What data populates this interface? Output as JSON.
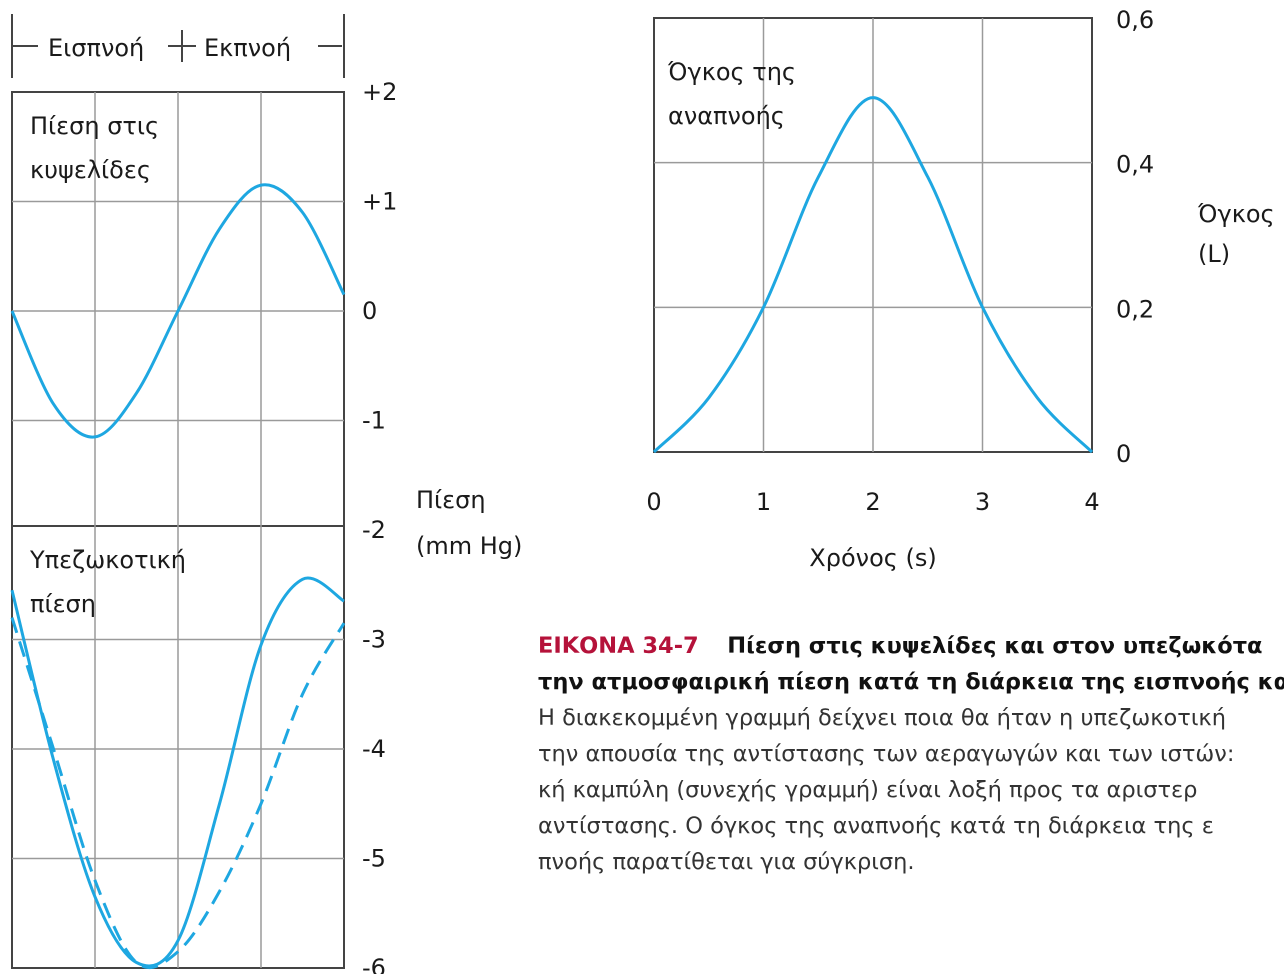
{
  "colors": {
    "curve": "#1ea7e1",
    "grid": "#9a9a9a",
    "frame": "#444444",
    "caption_label": "#b5123a"
  },
  "phase_labels": [
    "Εισπνοή",
    "Εκπνοή"
  ],
  "chart_data": [
    {
      "type": "line",
      "panel": "alveolar-pressure",
      "title": "Πίεση στις κυψελίδες",
      "title_lines": [
        "Πίεση στις",
        "κυψελίδες"
      ],
      "ylabel_lines": [
        "Πίεση",
        "(mm Hg)"
      ],
      "xlim": [
        0,
        4
      ],
      "ylim": [
        -2,
        2
      ],
      "series": [
        {
          "style": "solid",
          "x": [
            0,
            0.5,
            1,
            1.5,
            2,
            2.5,
            3,
            3.5,
            4
          ],
          "y": [
            0,
            -0.85,
            -1.15,
            -0.75,
            0,
            0.75,
            1.15,
            0.9,
            0.15
          ]
        }
      ]
    },
    {
      "type": "line",
      "panel": "pleural-pressure",
      "title": "Υπεζωκοτική πίεση",
      "title_lines": [
        "Υπεζωκοτική",
        "πίεση"
      ],
      "xlim": [
        0,
        4
      ],
      "ylim": [
        -6,
        -2
      ],
      "series": [
        {
          "style": "solid",
          "x": [
            0,
            0.5,
            1,
            1.5,
            2,
            2.5,
            3,
            3.5,
            4
          ],
          "y": [
            -2.55,
            -4.1,
            -5.35,
            -5.95,
            -5.75,
            -4.5,
            -3.05,
            -2.45,
            -2.65
          ]
        },
        {
          "style": "dashed",
          "x": [
            0,
            0.5,
            1,
            1.5,
            2,
            2.5,
            3,
            3.5,
            4
          ],
          "y": [
            -2.8,
            -4.0,
            -5.2,
            -5.95,
            -5.85,
            -5.3,
            -4.5,
            -3.5,
            -2.85
          ]
        }
      ]
    },
    {
      "type": "line",
      "panel": "respiratory-volume",
      "title": "Όγκος της αναπνοής",
      "title_lines": [
        "Όγκος της",
        "αναπνοής"
      ],
      "xlabel": "Χρόνος (s)",
      "ylabel_lines": [
        "Όγκος",
        "(L)"
      ],
      "xticks": [
        "0",
        "1",
        "2",
        "3",
        "4"
      ],
      "yticks": [
        "0",
        "0,2",
        "0,4",
        "0,6"
      ],
      "xlim": [
        0,
        4
      ],
      "ylim": [
        0,
        0.6
      ],
      "series": [
        {
          "style": "solid",
          "x": [
            0,
            0.5,
            1,
            1.5,
            2,
            2.5,
            3,
            3.5,
            4
          ],
          "y": [
            0,
            0.075,
            0.2,
            0.38,
            0.49,
            0.38,
            0.2,
            0.075,
            0
          ]
        }
      ]
    }
  ],
  "pressure_ticks": [
    "+2",
    "+1",
    "0",
    "-1",
    "-2",
    "-3",
    "-4",
    "-5",
    "-6"
  ],
  "caption": {
    "label": "ΕΙΚΟΝΑ 34-7",
    "bold_lines": [
      "Πίεση στις κυψελίδες και στον υπεζωκότα",
      "την ατμοσφαιρική πίεση κατά τη διάρκεια της εισπνοής και τ"
    ],
    "lines": [
      "Η διακεκομμένη γραμμή δείχνει ποια θα ήταν η υπεζωκοτική",
      "την απουσία της αντίστασης των αεραγωγών και των ιστών:",
      "κή καμπύλη (συνεχής γραμμή) είναι λοξή προς τα αριστερ",
      "αντίστασης. Ο όγκος της αναπνοής κατά τη διάρκεια της ε",
      "πνοής παρατίθεται για σύγκριση."
    ]
  }
}
